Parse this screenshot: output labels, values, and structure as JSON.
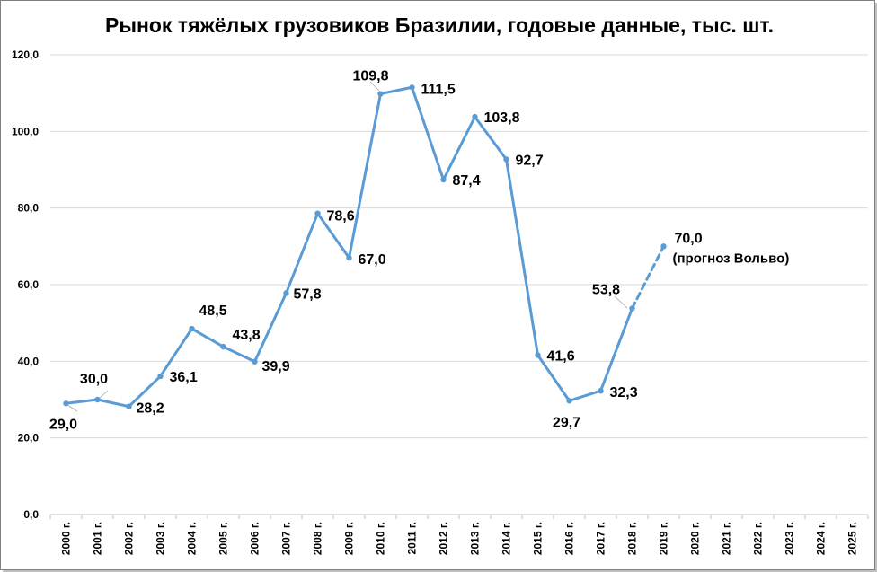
{
  "chart_data": {
    "type": "line",
    "title": "Рынок тяжёлых грузовиков Бразилии, годовые данные, тыс. шт.",
    "xlabel": "",
    "ylabel": "",
    "ylim": [
      0,
      120
    ],
    "yticks": [
      "0,0",
      "20,0",
      "40,0",
      "60,0",
      "80,0",
      "100,0",
      "120,0"
    ],
    "grid": true,
    "categories": [
      "2000 г.",
      "2001 г.",
      "2002 г.",
      "2003 г.",
      "2004 г.",
      "2005 г.",
      "2006 г.",
      "2007 г.",
      "2008 г.",
      "2009 г.",
      "2010 г.",
      "2011 г.",
      "2012 г.",
      "2013 г.",
      "2014 г.",
      "2015 г.",
      "2016 г.",
      "2017 г.",
      "2018 г.",
      "2019 г.",
      "2020 г.",
      "2021 г.",
      "2022 г.",
      "2023 г.",
      "2024 г.",
      "2025 г."
    ],
    "series": [
      {
        "color": "#5b9bd5",
        "style": "solid",
        "values": [
          29.0,
          30.0,
          28.2,
          36.1,
          48.5,
          43.8,
          39.9,
          57.8,
          78.6,
          67.0,
          109.8,
          111.5,
          87.4,
          103.8,
          92.7,
          41.6,
          29.7,
          32.3,
          53.8,
          null,
          null,
          null,
          null,
          null,
          null,
          null
        ],
        "labels": [
          "29,0",
          "30,0",
          "28,2",
          "36,1",
          "48,5",
          "43,8",
          "39,9",
          "57,8",
          "78,6",
          "67,0",
          "109,8",
          "111,5",
          "87,4",
          "103,8",
          "92,7",
          "41,6",
          "29,7",
          "32,3",
          "53,8",
          null,
          null,
          null,
          null,
          null,
          null,
          null
        ]
      },
      {
        "color": "#5b9bd5",
        "style": "dashed",
        "values": [
          null,
          null,
          null,
          null,
          null,
          null,
          null,
          null,
          null,
          null,
          null,
          null,
          null,
          null,
          null,
          null,
          null,
          null,
          53.8,
          70.0,
          null,
          null,
          null,
          null,
          null,
          null
        ],
        "labels": [
          null,
          null,
          null,
          null,
          null,
          null,
          null,
          null,
          null,
          null,
          null,
          null,
          null,
          null,
          null,
          null,
          null,
          null,
          null,
          "70,0",
          null,
          null,
          null,
          null,
          null,
          null
        ]
      }
    ],
    "annotations": [
      {
        "category": "2019 г.",
        "text": "(прогноз Вольво)"
      }
    ]
  }
}
